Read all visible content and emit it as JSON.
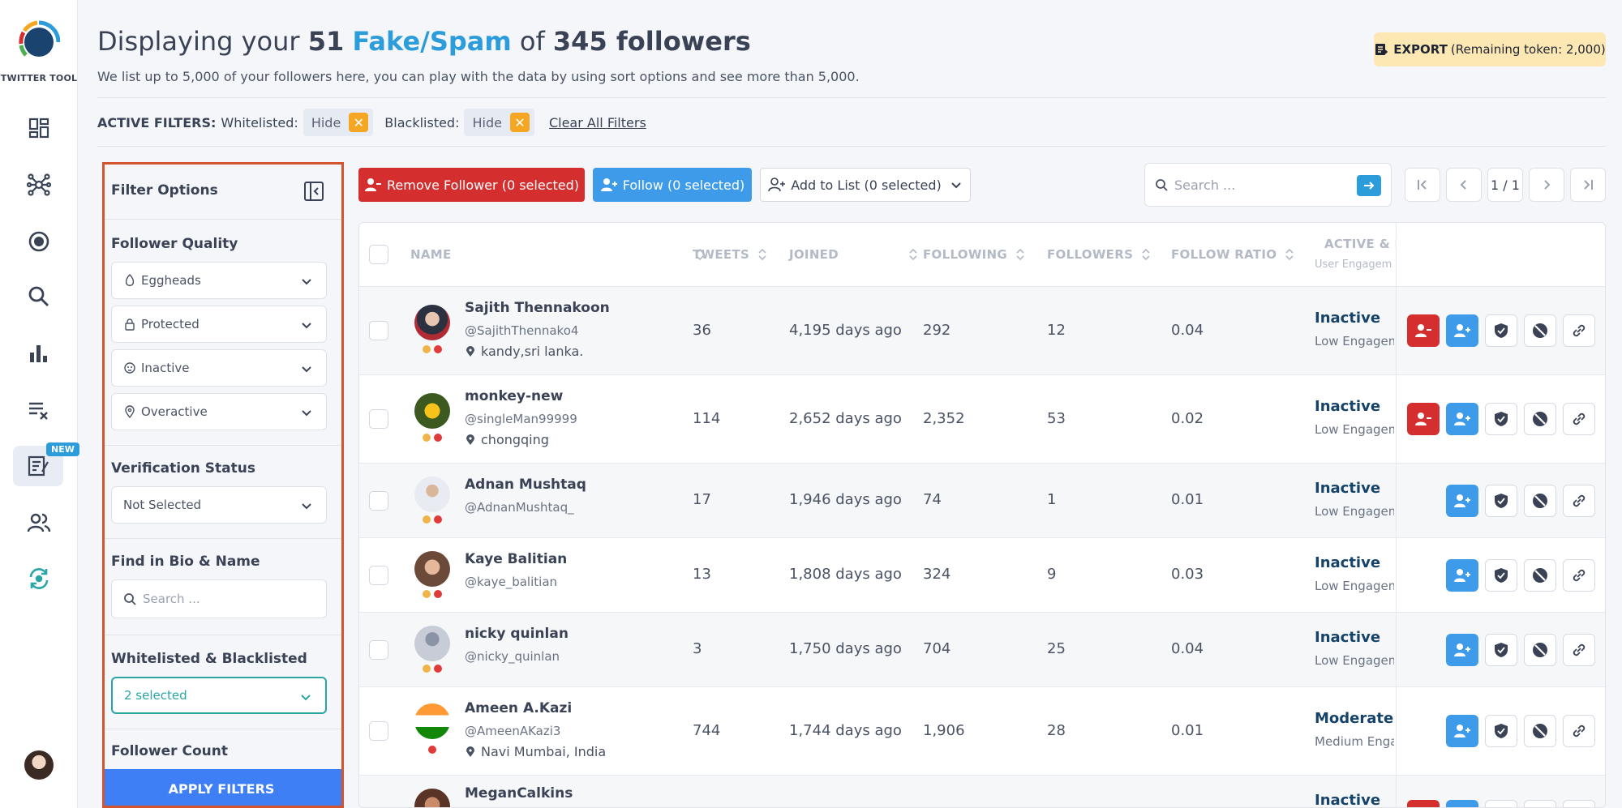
{
  "nav": {
    "logo_text": "TWITTER TOOL",
    "new_badge": "NEW",
    "items": [
      {
        "name": "dashboard-icon"
      },
      {
        "name": "network-icon"
      },
      {
        "name": "target-icon"
      },
      {
        "name": "search-icon"
      },
      {
        "name": "bar-chart-icon"
      },
      {
        "name": "clear-list-icon"
      },
      {
        "name": "notes-icon"
      },
      {
        "name": "users-icon"
      },
      {
        "name": "sync-icon"
      }
    ]
  },
  "header": {
    "title_prefix": "Displaying your",
    "count": "51",
    "category": "Fake/Spam",
    "title_of": "of",
    "total": "345 followers",
    "subtitle": "We list up to 5,000 of your followers here, you can play with the data by using sort options and see more than 5,000.",
    "export_label": "EXPORT",
    "export_note": "(Remaining token: 2,000)"
  },
  "active_filters": {
    "label": "ACTIVE FILTERS:",
    "whitelisted_label": "Whitelisted:",
    "whitelisted_value": "Hide",
    "blacklisted_label": "Blacklisted:",
    "blacklisted_value": "Hide",
    "clear_all": "Clear All Filters"
  },
  "filter_panel": {
    "title": "Filter Options",
    "follower_quality": "Follower Quality",
    "quality_options": [
      "Eggheads",
      "Protected",
      "Inactive",
      "Overactive"
    ],
    "verification_status": "Verification Status",
    "verification_value": "Not Selected",
    "find_bio": "Find in Bio & Name",
    "search_placeholder": "Search ...",
    "wl_bl": "Whitelisted & Blacklisted",
    "wl_bl_value": "2 selected",
    "follower_count": "Follower Count",
    "apply": "APPLY FILTERS"
  },
  "actions": {
    "remove": "Remove Follower (0 selected)",
    "follow": "Follow (0 selected)",
    "add_list": "Add to List (0 selected)",
    "search_placeholder": "Search ...",
    "page": "1 / 1"
  },
  "table": {
    "columns": [
      "NAME",
      "TWEETS",
      "JOINED",
      "FOLLOWING",
      "FOLLOWERS",
      "FOLLOW RATIO",
      "ACTIVE & I"
    ],
    "col_sub": "User Engagem",
    "rows": [
      {
        "name": "Sajith Thennakoon",
        "handle": "@SajithThennako4",
        "location": "kandy,sri lanka.",
        "tweets": "36",
        "joined": "4,195 days ago",
        "following": "292",
        "followers": "12",
        "ratio": "0.04",
        "status": "Inactive",
        "engagement": "Low Engagem",
        "remove": true
      },
      {
        "name": "monkey-new",
        "handle": "@singleMan99999",
        "location": "chongqing",
        "tweets": "114",
        "joined": "2,652 days ago",
        "following": "2,352",
        "followers": "53",
        "ratio": "0.02",
        "status": "Inactive",
        "engagement": "Low Engagem",
        "remove": true
      },
      {
        "name": "Adnan Mushtaq",
        "handle": "@AdnanMushtaq_",
        "location": "",
        "tweets": "17",
        "joined": "1,946 days ago",
        "following": "74",
        "followers": "1",
        "ratio": "0.01",
        "status": "Inactive",
        "engagement": "Low Engagem",
        "remove": false
      },
      {
        "name": "Kaye Balitian",
        "handle": "@kaye_balitian",
        "location": "",
        "tweets": "13",
        "joined": "1,808 days ago",
        "following": "324",
        "followers": "9",
        "ratio": "0.03",
        "status": "Inactive",
        "engagement": "Low Engagem",
        "remove": false
      },
      {
        "name": "nicky quinlan",
        "handle": "@nicky_quinlan",
        "location": "",
        "tweets": "3",
        "joined": "1,750 days ago",
        "following": "704",
        "followers": "25",
        "ratio": "0.04",
        "status": "Inactive",
        "engagement": "Low Engagem",
        "remove": false
      },
      {
        "name": "Ameen A.Kazi",
        "handle": "@AmeenAKazi3",
        "location": "Navi Mumbai, India",
        "tweets": "744",
        "joined": "1,744 days ago",
        "following": "1,906",
        "followers": "28",
        "ratio": "0.01",
        "status": "Moderate A",
        "engagement": "Medium Engag",
        "remove": false
      },
      {
        "name": "MeganCalkins",
        "handle": "",
        "location": "",
        "tweets": "",
        "joined": "",
        "following": "",
        "followers": "",
        "ratio": "",
        "status": "Inactive",
        "engagement": "",
        "remove": true
      }
    ]
  },
  "colors": {
    "accent": "#2d9cdb",
    "danger": "#d42e2e",
    "primary": "#3d9be9",
    "panel_border": "#d2552f",
    "apply": "#3f7ff6",
    "export_bg": "#fde7b3"
  }
}
